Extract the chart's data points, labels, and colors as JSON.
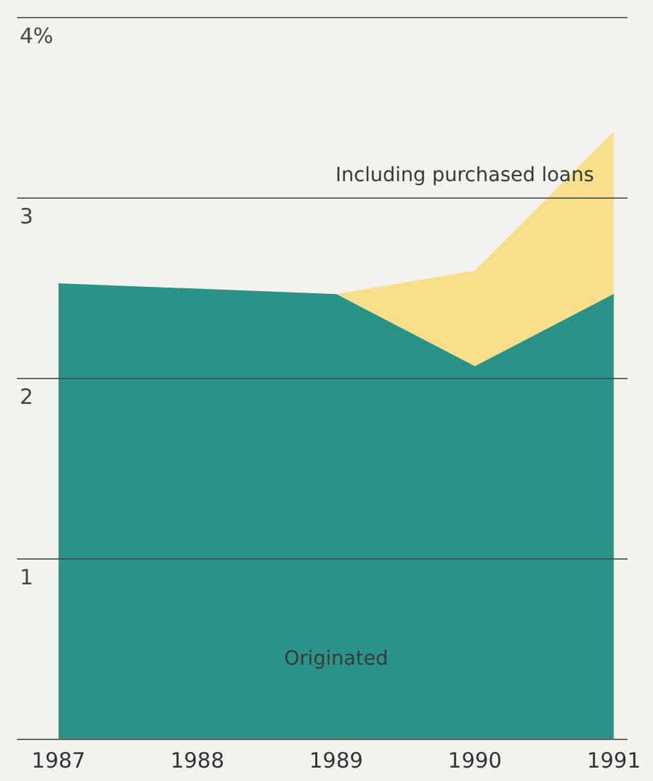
{
  "chart_data": {
    "type": "area",
    "x": [
      1987,
      1988,
      1989,
      1990,
      1991
    ],
    "series": [
      {
        "name": "Including purchased loans",
        "color": "#f9de8c",
        "values": [
          2.52,
          2.49,
          2.46,
          2.59,
          3.36
        ]
      },
      {
        "name": "Originated",
        "color": "#2a9388",
        "values": [
          2.52,
          2.49,
          2.46,
          2.06,
          2.46
        ]
      }
    ],
    "xlim": [
      1986.7,
      1991.1
    ],
    "xticks": [
      1987,
      1988,
      1989,
      1990,
      1991
    ],
    "ylim": [
      0,
      4
    ],
    "yticks": [
      {
        "value": 0,
        "label": null
      },
      1,
      2,
      3,
      {
        "value": 4,
        "label": "4%"
      }
    ],
    "grid": "y",
    "legend": false,
    "marker": "none"
  }
}
